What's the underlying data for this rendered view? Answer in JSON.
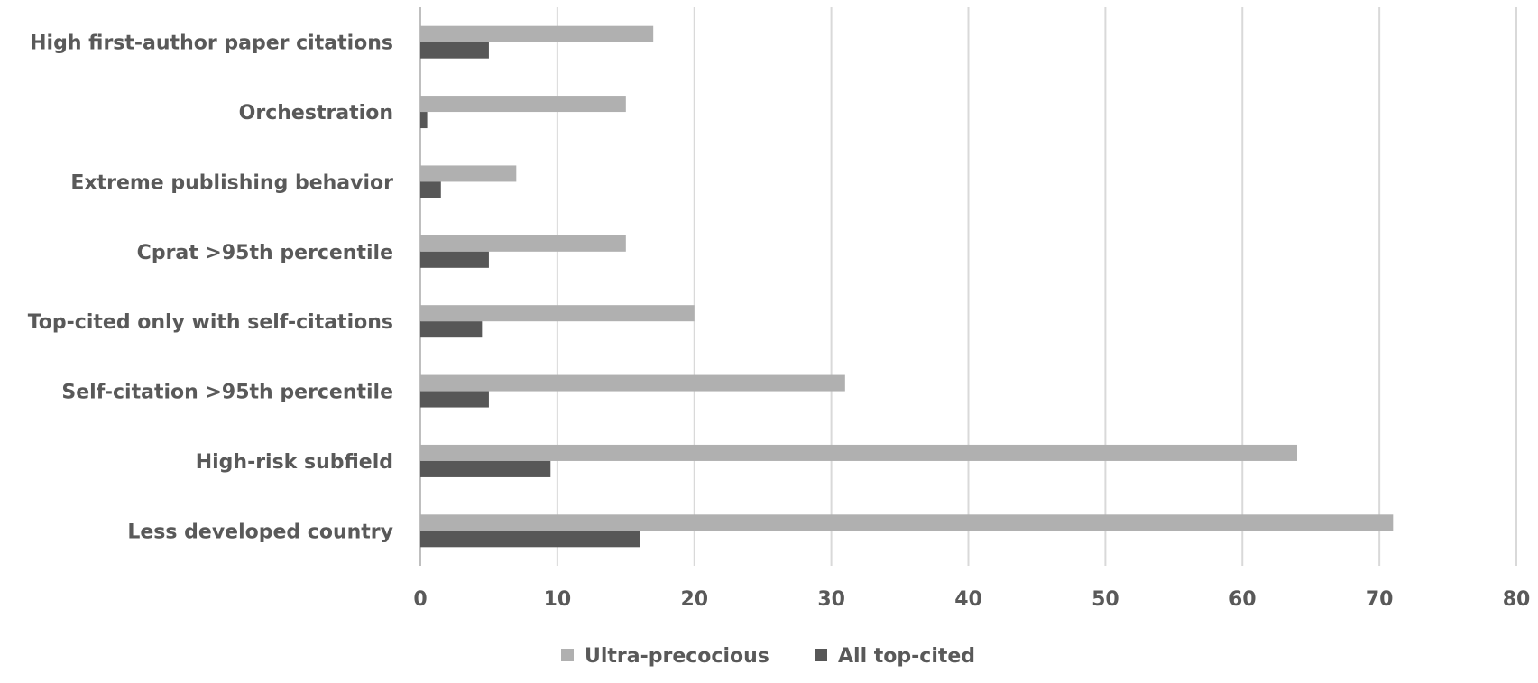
{
  "chart_data": {
    "type": "bar",
    "orientation": "horizontal",
    "categories": [
      "High first-author paper citations",
      "Orchestration",
      "Extreme publishing behavior",
      "Cprat >95th percentile",
      "Top-cited only with self-citations",
      "Self-citation >95th percentile",
      "High-risk subfield",
      "Less developed country"
    ],
    "series": [
      {
        "name": "Ultra-precocious",
        "color": "#b0b0b0",
        "values": [
          17,
          15,
          7,
          15,
          20,
          31,
          64,
          71
        ]
      },
      {
        "name": "All top-cited",
        "color": "#575757",
        "values": [
          5,
          0.5,
          1.5,
          5,
          4.5,
          5,
          9.5,
          16
        ]
      }
    ],
    "xlim": [
      0,
      80
    ],
    "xticks": [
      "0",
      "10",
      "20",
      "30",
      "40",
      "50",
      "60",
      "70",
      "80"
    ],
    "grid": true,
    "legend_position": "bottom"
  }
}
